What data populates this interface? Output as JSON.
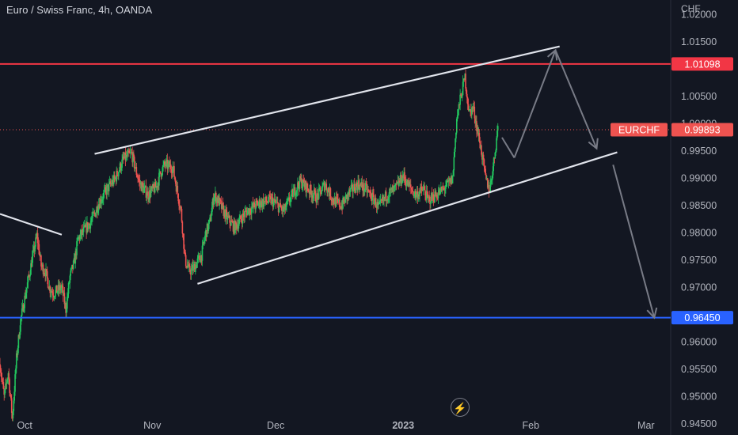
{
  "header": {
    "title": "Euro / Swiss Franc, 4h, OANDA"
  },
  "axis": {
    "currency": "CHF"
  },
  "bolt_icon": "lightning-bolt-icon",
  "colors": {
    "background": "#131722",
    "grid": "#1e222d",
    "axis_text": "#b2b5be",
    "up": "#22c55e",
    "down": "#ef5350",
    "resistance": "#f23645",
    "support": "#2962ff",
    "channel": "#e0e3eb",
    "projection": "#787b86"
  },
  "chart_data": {
    "type": "candlestick",
    "title": "Euro / Swiss Franc, 4h, OANDA",
    "symbol": "EURCHF",
    "y_unit": "CHF",
    "ylim": [
      0.943,
      1.0227
    ],
    "xlim": [
      "2022-09-25",
      "2023-03-07"
    ],
    "y_ticks": [
      "1.02000",
      "1.01500",
      "1.01098",
      "1.00500",
      "1.00000",
      "0.99893",
      "0.99500",
      "0.99000",
      "0.98500",
      "0.98000",
      "0.97500",
      "0.97000",
      "0.96450",
      "0.96000",
      "0.95500",
      "0.95000",
      "0.94500"
    ],
    "x_ticks": [
      {
        "label": "Oct",
        "date": "2022-10-01"
      },
      {
        "label": "Nov",
        "date": "2022-11-01"
      },
      {
        "label": "Dec",
        "date": "2022-12-01"
      },
      {
        "label": "2023",
        "date": "2023-01-01"
      },
      {
        "label": "Feb",
        "date": "2023-02-01"
      },
      {
        "label": "Mar",
        "date": "2023-03-01"
      }
    ],
    "last_price": {
      "label": "EURCHF",
      "value": 0.99893
    },
    "horizontal_lines": [
      {
        "label": "1.01098",
        "value": 1.01098,
        "color": "#f23645"
      },
      {
        "label": "0.96450",
        "value": 0.9645,
        "color": "#2962ff"
      }
    ],
    "trend_lines": [
      {
        "name": "upper-channel",
        "points": [
          [
            "2022-10-18",
            0.9945
          ],
          [
            "2023-02-08",
            1.0142
          ]
        ]
      },
      {
        "name": "lower-channel",
        "points": [
          [
            "2022-11-12",
            0.9707
          ],
          [
            "2023-02-22",
            0.9948
          ]
        ]
      },
      {
        "name": "prior-trend",
        "points": [
          [
            "2022-09-25",
            0.9835
          ],
          [
            "2022-10-10",
            0.9797
          ]
        ]
      }
    ],
    "projection": [
      [
        "2023-01-25",
        0.9975
      ],
      [
        "2023-01-28",
        0.9938
      ],
      [
        "2023-02-07",
        1.0135
      ],
      [
        "2023-02-17",
        0.9955
      ],
      [
        "2023-02-21",
        0.9925
      ],
      [
        "2023-03-03",
        0.9645
      ]
    ],
    "price_path": [
      [
        "2022-09-25",
        0.956
      ],
      [
        "2022-09-26",
        0.95
      ],
      [
        "2022-09-27",
        0.9545
      ],
      [
        "2022-09-28",
        0.946
      ],
      [
        "2022-09-29",
        0.957
      ],
      [
        "2022-09-30",
        0.964
      ],
      [
        "2022-10-01",
        0.968
      ],
      [
        "2022-10-03",
        0.976
      ],
      [
        "2022-10-04",
        0.9795
      ],
      [
        "2022-10-05",
        0.974
      ],
      [
        "2022-10-06",
        0.973
      ],
      [
        "2022-10-07",
        0.97
      ],
      [
        "2022-10-08",
        0.969
      ],
      [
        "2022-10-10",
        0.97
      ],
      [
        "2022-10-11",
        0.966
      ],
      [
        "2022-10-12",
        0.972
      ],
      [
        "2022-10-13",
        0.9745
      ],
      [
        "2022-10-14",
        0.979
      ],
      [
        "2022-10-17",
        0.982
      ],
      [
        "2022-10-18",
        0.9835
      ],
      [
        "2022-10-19",
        0.9855
      ],
      [
        "2022-10-21",
        0.988
      ],
      [
        "2022-10-23",
        0.99
      ],
      [
        "2022-10-25",
        0.9935
      ],
      [
        "2022-10-27",
        0.9945
      ],
      [
        "2022-10-28",
        0.9915
      ],
      [
        "2022-10-29",
        0.989
      ],
      [
        "2022-10-31",
        0.987
      ],
      [
        "2022-11-02",
        0.9885
      ],
      [
        "2022-11-03",
        0.991
      ],
      [
        "2022-11-04",
        0.9925
      ],
      [
        "2022-11-06",
        0.992
      ],
      [
        "2022-11-07",
        0.988
      ],
      [
        "2022-11-08",
        0.984
      ],
      [
        "2022-11-09",
        0.975
      ],
      [
        "2022-11-10",
        0.973
      ],
      [
        "2022-11-11",
        0.9735
      ],
      [
        "2022-11-13",
        0.976
      ],
      [
        "2022-11-14",
        0.98
      ],
      [
        "2022-11-15",
        0.982
      ],
      [
        "2022-11-16",
        0.987
      ],
      [
        "2022-11-17",
        0.986
      ],
      [
        "2022-11-19",
        0.983
      ],
      [
        "2022-11-21",
        0.981
      ],
      [
        "2022-11-24",
        0.984
      ],
      [
        "2022-11-27",
        0.9855
      ],
      [
        "2022-11-30",
        0.986
      ],
      [
        "2022-12-03",
        0.984
      ],
      [
        "2022-12-05",
        0.987
      ],
      [
        "2022-12-07",
        0.9895
      ],
      [
        "2022-12-09",
        0.988
      ],
      [
        "2022-12-11",
        0.9865
      ],
      [
        "2022-12-13",
        0.989
      ],
      [
        "2022-12-15",
        0.986
      ],
      [
        "2022-12-17",
        0.985
      ],
      [
        "2022-12-19",
        0.9875
      ],
      [
        "2022-12-21",
        0.989
      ],
      [
        "2022-12-23",
        0.988
      ],
      [
        "2022-12-25",
        0.986
      ],
      [
        "2022-12-26",
        0.9845
      ],
      [
        "2022-12-28",
        0.987
      ],
      [
        "2022-12-30",
        0.988
      ],
      [
        "2023-01-01",
        0.9905
      ],
      [
        "2023-01-02",
        0.989
      ],
      [
        "2023-01-04",
        0.987
      ],
      [
        "2023-01-06",
        0.988
      ],
      [
        "2023-01-07",
        0.986
      ],
      [
        "2023-01-08",
        0.9865
      ],
      [
        "2023-01-10",
        0.9875
      ],
      [
        "2023-01-12",
        0.989
      ],
      [
        "2023-01-13",
        0.99
      ],
      [
        "2023-01-14",
        1.001
      ],
      [
        "2023-01-15",
        1.005
      ],
      [
        "2023-01-16",
        1.0085
      ],
      [
        "2023-01-17",
        1.002
      ],
      [
        "2023-01-18",
        1.003
      ],
      [
        "2023-01-19",
        0.999
      ],
      [
        "2023-01-20",
        0.995
      ],
      [
        "2023-01-21",
        0.99
      ],
      [
        "2023-01-22",
        0.988
      ],
      [
        "2023-01-23",
        0.993
      ],
      [
        "2023-01-24",
        0.9995
      ]
    ]
  }
}
